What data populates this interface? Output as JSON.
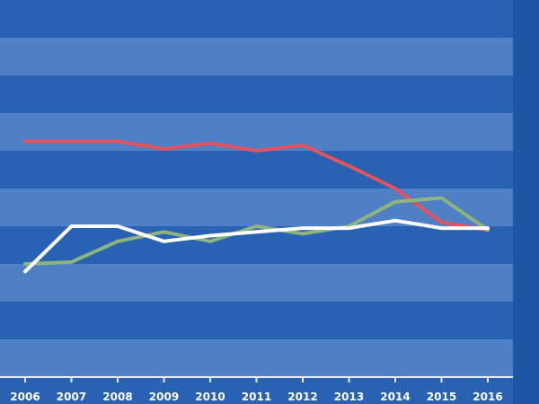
{
  "colors": {
    "background": "#2a62b3",
    "band_dark": "#2a62b3",
    "band_light": "#4f7fc4",
    "right_strip": "#1f56a6",
    "axis": "#e6ecf5"
  },
  "chart_data": {
    "type": "line",
    "title": "",
    "xlabel": "",
    "ylabel": "",
    "x": [
      "2006",
      "2007",
      "2008",
      "2009",
      "2010",
      "2011",
      "2012",
      "2013",
      "2014",
      "2015",
      "2016"
    ],
    "ylim": [
      0,
      10
    ],
    "band_count": 10,
    "grid": "alternating horizontal bands",
    "legend": "none",
    "series": [
      {
        "color": "#e0535f",
        "values": [
          6.25,
          6.25,
          6.25,
          6.05,
          6.2,
          6.0,
          6.15,
          5.6,
          5.0,
          4.1,
          3.9
        ]
      },
      {
        "color": "#8cb47c",
        "values": [
          3.0,
          3.05,
          3.6,
          3.85,
          3.6,
          4.0,
          3.8,
          4.0,
          4.65,
          4.75,
          3.9
        ]
      },
      {
        "color": "#ffffff",
        "values": [
          2.8,
          4.0,
          4.0,
          3.6,
          3.75,
          3.85,
          3.95,
          3.95,
          4.15,
          3.95,
          3.95
        ]
      }
    ]
  }
}
